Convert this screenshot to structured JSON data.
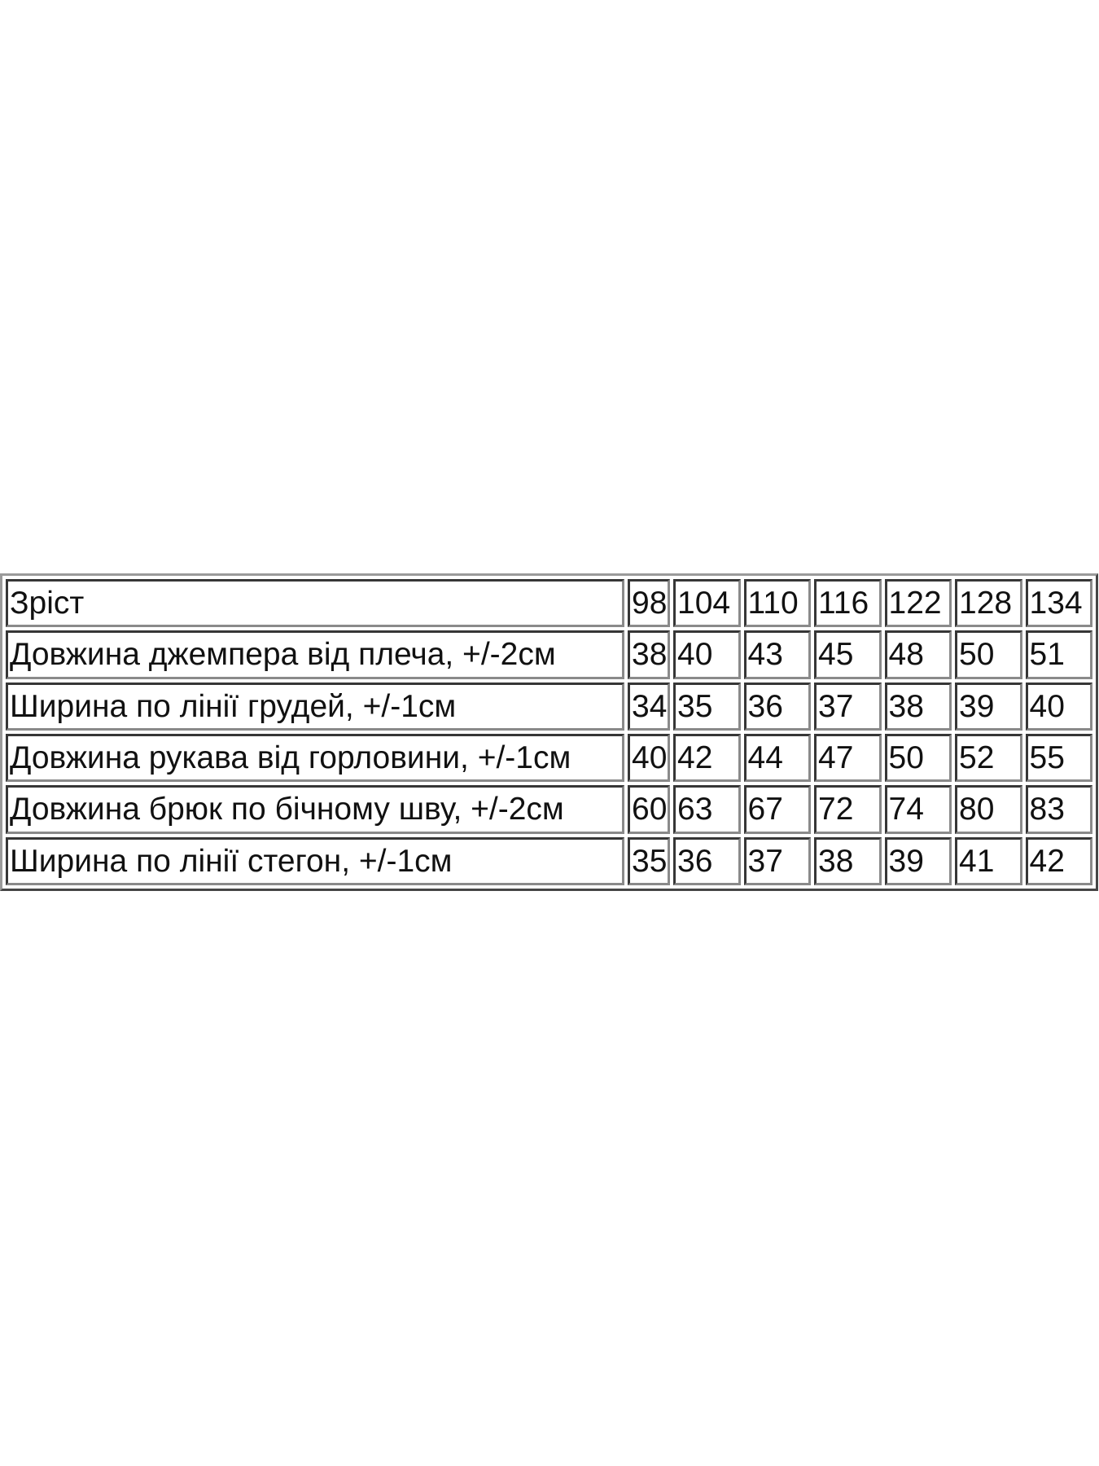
{
  "size_table": {
    "header": {
      "label": "Зріст",
      "sizes": [
        "98",
        "104",
        "110",
        "116",
        "122",
        "128",
        "134"
      ]
    },
    "rows": [
      {
        "label": "Довжина джемпера від плеча, +/-2см",
        "values": [
          "38",
          "40",
          "43",
          "45",
          "48",
          "50",
          "51"
        ]
      },
      {
        "label": "Ширина по лінії грудей, +/-1см",
        "values": [
          "34",
          "35",
          "36",
          "37",
          "38",
          "39",
          "40"
        ]
      },
      {
        "label": "Довжина рукава від горловини, +/-1см",
        "values": [
          "40",
          "42",
          "44",
          "47",
          "50",
          "52",
          "55"
        ]
      },
      {
        "label": "Довжина брюк по бічному шву, +/-2см",
        "values": [
          "60",
          "63",
          "67",
          "72",
          "74",
          "80",
          "83"
        ]
      },
      {
        "label": "Ширина по лінії стегон, +/-1см",
        "values": [
          "35",
          "36",
          "37",
          "38",
          "39",
          "41",
          "42"
        ]
      }
    ]
  }
}
